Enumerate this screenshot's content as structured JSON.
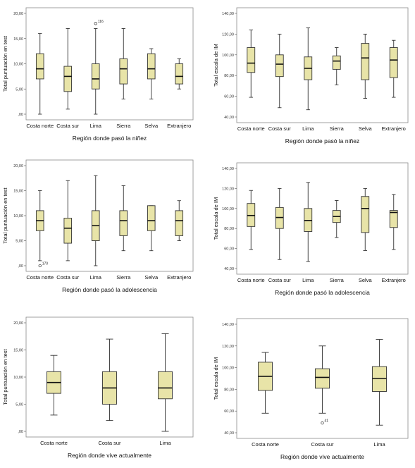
{
  "colors": {
    "box_fill": "#E8E4A8",
    "box_edge": "#333333",
    "frame": "#8A8A8A",
    "background": "#FFFFFF"
  },
  "chart_data": [
    {
      "type": "box",
      "xlabel": "Región donde pasó la niñez",
      "ylabel": "Total puntuación en test",
      "ylim": [
        0,
        20
      ],
      "yticks": [
        ",00",
        "5,00",
        "10,00",
        "15,00",
        "20,00"
      ],
      "categories": [
        "Costa norte",
        "Costa sur",
        "Lima",
        "Sierra",
        "Selva",
        "Extranjero"
      ],
      "boxes": [
        {
          "min": 0,
          "q1": 7,
          "median": 9,
          "q3": 12,
          "max": 16
        },
        {
          "min": 1,
          "q1": 4.5,
          "median": 7.5,
          "q3": 9.5,
          "max": 17
        },
        {
          "min": 0,
          "q1": 5,
          "median": 7,
          "q3": 10,
          "max": 17
        },
        {
          "min": 3,
          "q1": 6,
          "median": 9,
          "q3": 11,
          "max": 17
        },
        {
          "min": 3,
          "q1": 7,
          "median": 9,
          "q3": 12,
          "max": 13
        },
        {
          "min": 5,
          "q1": 6,
          "median": 7.5,
          "q3": 10,
          "max": 11
        }
      ],
      "outliers": [
        {
          "category": "Lima",
          "value": 18,
          "label": "116"
        }
      ]
    },
    {
      "type": "box",
      "xlabel": "Región donde pasó la niñez",
      "ylabel": "Total escala de IM",
      "ylim": [
        40,
        140
      ],
      "yticks": [
        "40,00",
        "60,00",
        "80,00",
        "100,00",
        "120,00",
        "140,00"
      ],
      "categories": [
        "Costa norte",
        "Costa sur",
        "Lima",
        "Sierra",
        "Selva",
        "Extranjero"
      ],
      "boxes": [
        {
          "min": 59,
          "q1": 83,
          "median": 92,
          "q3": 107,
          "max": 124
        },
        {
          "min": 49,
          "q1": 79,
          "median": 91,
          "q3": 100,
          "max": 120
        },
        {
          "min": 47,
          "q1": 76,
          "median": 87,
          "q3": 98,
          "max": 126
        },
        {
          "min": 71,
          "q1": 86,
          "median": 94,
          "q3": 99,
          "max": 107
        },
        {
          "min": 58,
          "q1": 76,
          "median": 97,
          "q3": 111,
          "max": 120
        },
        {
          "min": 59,
          "q1": 78,
          "median": 95,
          "q3": 107,
          "max": 114
        }
      ],
      "outliers": []
    },
    {
      "type": "box",
      "xlabel": "Región donde pasó la adolescencia",
      "ylabel": "Total puntuación en test",
      "ylim": [
        0,
        20
      ],
      "yticks": [
        ",00",
        "5,00",
        "10,00",
        "15,00",
        "20,00"
      ],
      "categories": [
        "Costa norte",
        "Costa sur",
        "Lima",
        "Sierra",
        "Selva",
        "Extranjero"
      ],
      "boxes": [
        {
          "min": 1,
          "q1": 7,
          "median": 9,
          "q3": 11,
          "max": 15
        },
        {
          "min": 1,
          "q1": 4.5,
          "median": 7.5,
          "q3": 9.5,
          "max": 17
        },
        {
          "min": 0,
          "q1": 5,
          "median": 8,
          "q3": 11,
          "max": 18
        },
        {
          "min": 3,
          "q1": 6,
          "median": 9,
          "q3": 11,
          "max": 16
        },
        {
          "min": 3,
          "q1": 7,
          "median": 9,
          "q3": 12,
          "max": 12
        },
        {
          "min": 5,
          "q1": 6,
          "median": 9,
          "q3": 11,
          "max": 13
        }
      ],
      "outliers": [
        {
          "category": "Costa norte",
          "value": 0,
          "label": "170"
        }
      ]
    },
    {
      "type": "box",
      "xlabel": "Región donde pasó la adolescencia",
      "ylabel": "Total escala de IM",
      "ylim": [
        40,
        140
      ],
      "yticks": [
        "40,00",
        "60,00",
        "80,00",
        "100,00",
        "120,00",
        "140,00"
      ],
      "categories": [
        "Costa norte",
        "Costa sur",
        "Lima",
        "Sierra",
        "Selva",
        "Extranjero"
      ],
      "boxes": [
        {
          "min": 59,
          "q1": 82,
          "median": 93,
          "q3": 105,
          "max": 118
        },
        {
          "min": 49,
          "q1": 80,
          "median": 91,
          "q3": 101,
          "max": 120
        },
        {
          "min": 47,
          "q1": 77,
          "median": 88,
          "q3": 100,
          "max": 126
        },
        {
          "min": 71,
          "q1": 86,
          "median": 92,
          "q3": 98,
          "max": 108
        },
        {
          "min": 58,
          "q1": 76,
          "median": 100,
          "q3": 112,
          "max": 120
        },
        {
          "min": 59,
          "q1": 81,
          "median": 96,
          "q3": 98,
          "max": 114
        }
      ],
      "outliers": []
    },
    {
      "type": "box",
      "xlabel": "Región donde vive actualmente",
      "ylabel": "Total puntuación en test",
      "ylim": [
        0,
        20
      ],
      "yticks": [
        ",00",
        "5,00",
        "10,00",
        "15,00",
        "20,00"
      ],
      "categories": [
        "Costa norte",
        "Costa sur",
        "Lima"
      ],
      "boxes": [
        {
          "min": 3,
          "q1": 7,
          "median": 9,
          "q3": 11,
          "max": 14
        },
        {
          "min": 2,
          "q1": 5,
          "median": 8,
          "q3": 11,
          "max": 17
        },
        {
          "min": 0,
          "q1": 6,
          "median": 8,
          "q3": 11,
          "max": 18
        }
      ],
      "outliers": []
    },
    {
      "type": "box",
      "xlabel": "Región donde vive actualmente",
      "ylabel": "Total escala de IM",
      "ylim": [
        40,
        140
      ],
      "yticks": [
        "40,00",
        "60,00",
        "80,00",
        "100,00",
        "120,00",
        "140,00"
      ],
      "categories": [
        "Costa norte",
        "Costa sur",
        "Lima"
      ],
      "boxes": [
        {
          "min": 58,
          "q1": 79,
          "median": 92,
          "q3": 105,
          "max": 114
        },
        {
          "min": 58,
          "q1": 81,
          "median": 91,
          "q3": 99,
          "max": 120
        },
        {
          "min": 47,
          "q1": 78,
          "median": 90,
          "q3": 101,
          "max": 126
        }
      ],
      "outliers": [
        {
          "category": "Costa sur",
          "value": 49,
          "label": "41"
        }
      ]
    }
  ]
}
